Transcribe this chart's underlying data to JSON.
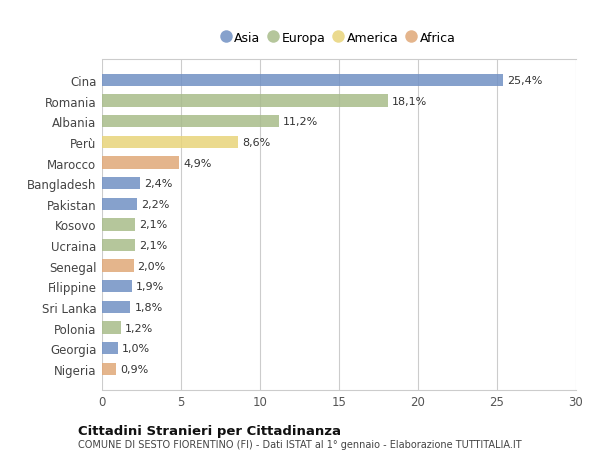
{
  "countries": [
    "Cina",
    "Romania",
    "Albania",
    "Perù",
    "Marocco",
    "Bangladesh",
    "Pakistan",
    "Kosovo",
    "Ucraina",
    "Senegal",
    "Filippine",
    "Sri Lanka",
    "Polonia",
    "Georgia",
    "Nigeria"
  ],
  "values": [
    25.4,
    18.1,
    11.2,
    8.6,
    4.9,
    2.4,
    2.2,
    2.1,
    2.1,
    2.0,
    1.9,
    1.8,
    1.2,
    1.0,
    0.9
  ],
  "labels": [
    "25,4%",
    "18,1%",
    "11,2%",
    "8,6%",
    "4,9%",
    "2,4%",
    "2,2%",
    "2,1%",
    "2,1%",
    "2,0%",
    "1,9%",
    "1,8%",
    "1,2%",
    "1,0%",
    "0,9%"
  ],
  "continents": [
    "Asia",
    "Europa",
    "Europa",
    "America",
    "Africa",
    "Asia",
    "Asia",
    "Europa",
    "Europa",
    "Africa",
    "Asia",
    "Asia",
    "Europa",
    "Asia",
    "Africa"
  ],
  "colors": {
    "Asia": "#7191c4",
    "Europa": "#a8bc8a",
    "America": "#e8d47a",
    "Africa": "#e0a878"
  },
  "title": "Cittadini Stranieri per Cittadinanza",
  "subtitle": "COMUNE DI SESTO FIORENTINO (FI) - Dati ISTAT al 1° gennaio - Elaborazione TUTTITALIA.IT",
  "xlim": [
    0,
    30
  ],
  "xticks": [
    0,
    5,
    10,
    15,
    20,
    25,
    30
  ],
  "background_color": "#ffffff",
  "bar_height": 0.6,
  "legend_order": [
    "Asia",
    "Europa",
    "America",
    "Africa"
  ]
}
